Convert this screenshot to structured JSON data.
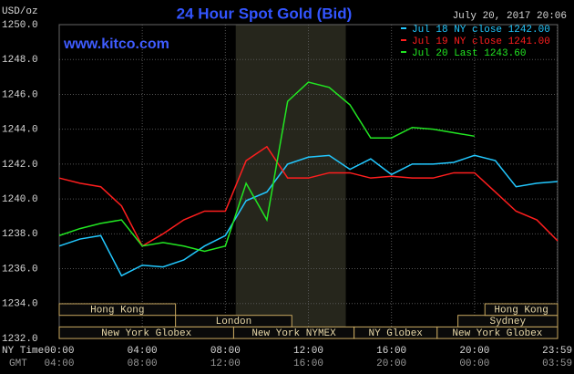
{
  "chart_data": {
    "type": "line",
    "title": "24 Hour Spot Gold (Bid)",
    "timestamp": "July 20, 2017 20:06",
    "site": "www.kitco.com",
    "y_label": "USD/oz",
    "x_label": "NY Time",
    "x2_label": "GMT",
    "x": [
      0,
      1,
      2,
      3,
      4,
      5,
      6,
      7,
      8,
      9,
      10,
      11,
      12,
      13,
      14,
      15,
      16,
      17,
      18,
      19,
      20,
      21,
      22,
      23,
      24
    ],
    "series": [
      {
        "name": "Jul 18 NY close 1242.00",
        "color": "#22c8ff",
        "values": [
          1237.3,
          1237.7,
          1237.9,
          1235.6,
          1236.2,
          1236.1,
          1236.5,
          1237.3,
          1237.9,
          1239.9,
          1240.4,
          1242.0,
          1242.4,
          1242.5,
          1241.7,
          1242.3,
          1241.4,
          1242.0,
          1242.0,
          1242.1,
          1242.5,
          1242.2,
          1240.7,
          1240.9,
          1241.0
        ]
      },
      {
        "name": "Jul 19 NY close 1241.00",
        "color": "#ff1e1e",
        "values": [
          1241.2,
          1240.9,
          1240.7,
          1239.6,
          1237.3,
          1238.0,
          1238.8,
          1239.3,
          1239.3,
          1242.2,
          1243.0,
          1241.2,
          1241.2,
          1241.5,
          1241.5,
          1241.2,
          1241.3,
          1241.2,
          1241.2,
          1241.5,
          1241.5,
          1240.4,
          1239.3,
          1238.8,
          1237.6
        ]
      },
      {
        "name": "Jul 20 Last 1243.60",
        "color": "#22e622",
        "values": [
          1237.9,
          1238.3,
          1238.6,
          1238.8,
          1237.3,
          1237.5,
          1237.3,
          1237.0,
          1237.3,
          1240.9,
          1238.8,
          1245.6,
          1246.7,
          1246.4,
          1245.4,
          1243.5,
          1243.5,
          1244.1,
          1244.0,
          1243.8,
          1243.6,
          null,
          null,
          null,
          null
        ]
      }
    ],
    "xlim": [
      0,
      24
    ],
    "xticks": [
      {
        "value": 0,
        "label": "00:00"
      },
      {
        "value": 4,
        "label": "04:00"
      },
      {
        "value": 8,
        "label": "08:00"
      },
      {
        "value": 12,
        "label": "12:00"
      },
      {
        "value": 16,
        "label": "16:00"
      },
      {
        "value": 20,
        "label": "20:00"
      },
      {
        "value": 23.983,
        "label": "23:59"
      }
    ],
    "x2ticks": [
      {
        "value": 0,
        "label": "04:00"
      },
      {
        "value": 4,
        "label": "08:00"
      },
      {
        "value": 8,
        "label": "12:00"
      },
      {
        "value": 12,
        "label": "16:00"
      },
      {
        "value": 16,
        "label": "20:00"
      },
      {
        "value": 20,
        "label": "00:00"
      },
      {
        "value": 23.983,
        "label": "03:59"
      }
    ],
    "ylim": [
      1232,
      1250
    ],
    "yticks": [
      {
        "value": 1232,
        "label": "1232.0"
      },
      {
        "value": 1234,
        "label": "1234.0"
      },
      {
        "value": 1236,
        "label": "1236.0"
      },
      {
        "value": 1238,
        "label": "1238.0"
      },
      {
        "value": 1240,
        "label": "1240.0"
      },
      {
        "value": 1242,
        "label": "1242.0"
      },
      {
        "value": 1244,
        "label": "1244.0"
      },
      {
        "value": 1246,
        "label": "1246.0"
      },
      {
        "value": 1248,
        "label": "1248.0"
      },
      {
        "value": 1250,
        "label": "1250.0"
      }
    ],
    "grid": true,
    "shaded_range": [
      8.5,
      13.8
    ],
    "sessions": [
      {
        "label": "Hong Kong",
        "row": 1,
        "start": 0,
        "end": 5.6
      },
      {
        "label": "London",
        "row": 2,
        "start": 5.6,
        "end": 11.2
      },
      {
        "label": "New York Globex",
        "row": 3,
        "start": 0,
        "end": 8.4
      },
      {
        "label": "New York NYMEX",
        "row": 3,
        "start": 8.4,
        "end": 14.2
      },
      {
        "label": "NY Globex",
        "row": 3,
        "start": 14.2,
        "end": 18.2
      },
      {
        "label": "Sydney",
        "row": 2,
        "start": 19.2,
        "end": 24
      },
      {
        "label": "Hong Kong",
        "row": 1,
        "start": 20.5,
        "end": 24
      },
      {
        "label": "New York Globex",
        "row": 3,
        "start": 18.2,
        "end": 24
      }
    ]
  }
}
